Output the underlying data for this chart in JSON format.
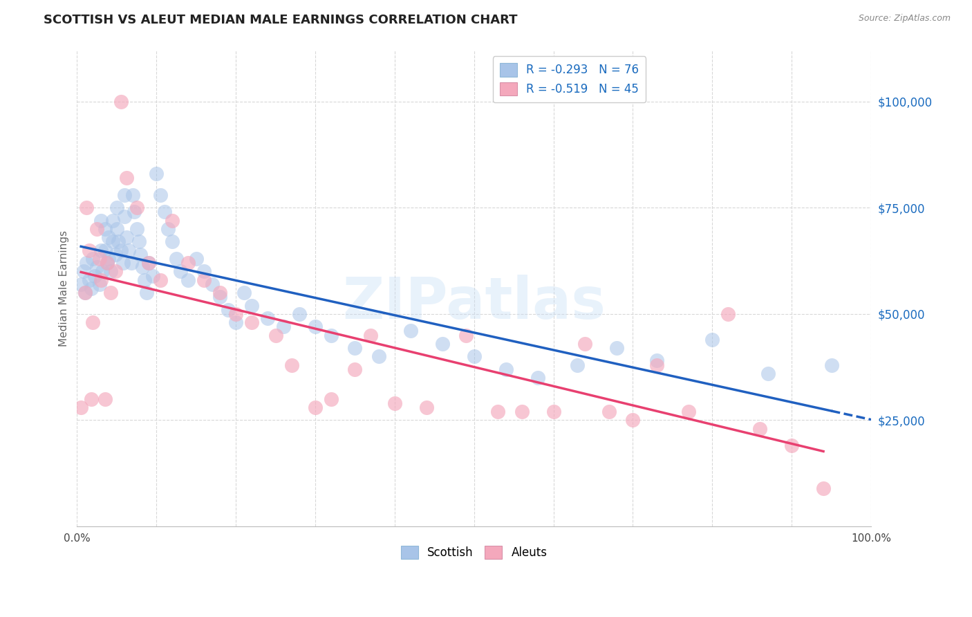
{
  "title": "SCOTTISH VS ALEUT MEDIAN MALE EARNINGS CORRELATION CHART",
  "source": "Source: ZipAtlas.com",
  "ylabel": "Median Male Earnings",
  "xlim": [
    0,
    1.0
  ],
  "ylim": [
    0,
    112000
  ],
  "yticks": [
    25000,
    50000,
    75000,
    100000
  ],
  "ytick_labels": [
    "$25,000",
    "$50,000",
    "$75,000",
    "$100,000"
  ],
  "xtick_positions": [
    0.0,
    0.1,
    0.2,
    0.3,
    0.4,
    0.5,
    0.6,
    0.7,
    0.8,
    0.9,
    1.0
  ],
  "xtick_labels_show": [
    "0.0%",
    "",
    "",
    "",
    "",
    "",
    "",
    "",
    "",
    "",
    "100.0%"
  ],
  "scottish_fill": "#a8c4e8",
  "aleuts_fill": "#f4a8bc",
  "trendline_blue": "#2060c0",
  "trendline_pink": "#e84070",
  "watermark": "ZIPatlas",
  "watermark_color": "#c5ddf5",
  "background_color": "#ffffff",
  "title_fontsize": 13,
  "source_fontsize": 9,
  "legend_color": "#1a6bbf",
  "scottish_x": [
    0.005,
    0.008,
    0.01,
    0.012,
    0.015,
    0.018,
    0.02,
    0.022,
    0.025,
    0.028,
    0.03,
    0.03,
    0.032,
    0.035,
    0.035,
    0.038,
    0.04,
    0.04,
    0.042,
    0.045,
    0.045,
    0.048,
    0.05,
    0.05,
    0.052,
    0.055,
    0.058,
    0.06,
    0.06,
    0.062,
    0.065,
    0.068,
    0.07,
    0.072,
    0.075,
    0.078,
    0.08,
    0.082,
    0.085,
    0.088,
    0.09,
    0.095,
    0.1,
    0.105,
    0.11,
    0.115,
    0.12,
    0.125,
    0.13,
    0.14,
    0.15,
    0.16,
    0.17,
    0.18,
    0.19,
    0.2,
    0.21,
    0.22,
    0.24,
    0.26,
    0.28,
    0.3,
    0.32,
    0.35,
    0.38,
    0.42,
    0.46,
    0.5,
    0.54,
    0.58,
    0.63,
    0.68,
    0.73,
    0.8,
    0.87,
    0.95
  ],
  "scottish_y": [
    57000,
    60000,
    55000,
    62000,
    58000,
    56000,
    63000,
    59000,
    61000,
    57000,
    72000,
    65000,
    60000,
    70000,
    65000,
    62000,
    68000,
    63000,
    60000,
    72000,
    67000,
    64000,
    75000,
    70000,
    67000,
    65000,
    62000,
    78000,
    73000,
    68000,
    65000,
    62000,
    78000,
    74000,
    70000,
    67000,
    64000,
    61000,
    58000,
    55000,
    62000,
    59000,
    83000,
    78000,
    74000,
    70000,
    67000,
    63000,
    60000,
    58000,
    63000,
    60000,
    57000,
    54000,
    51000,
    48000,
    55000,
    52000,
    49000,
    47000,
    50000,
    47000,
    45000,
    42000,
    40000,
    46000,
    43000,
    40000,
    37000,
    35000,
    38000,
    42000,
    39000,
    44000,
    36000,
    38000
  ],
  "aleuts_x": [
    0.005,
    0.01,
    0.012,
    0.015,
    0.018,
    0.02,
    0.025,
    0.028,
    0.03,
    0.035,
    0.038,
    0.042,
    0.048,
    0.055,
    0.062,
    0.075,
    0.09,
    0.105,
    0.12,
    0.14,
    0.16,
    0.18,
    0.2,
    0.22,
    0.25,
    0.27,
    0.3,
    0.32,
    0.35,
    0.37,
    0.4,
    0.44,
    0.49,
    0.53,
    0.56,
    0.6,
    0.64,
    0.67,
    0.7,
    0.73,
    0.77,
    0.82,
    0.86,
    0.9,
    0.94
  ],
  "aleuts_y": [
    28000,
    55000,
    75000,
    65000,
    30000,
    48000,
    70000,
    63000,
    58000,
    30000,
    62000,
    55000,
    60000,
    100000,
    82000,
    75000,
    62000,
    58000,
    72000,
    62000,
    58000,
    55000,
    50000,
    48000,
    45000,
    38000,
    28000,
    30000,
    37000,
    45000,
    29000,
    28000,
    45000,
    27000,
    27000,
    27000,
    43000,
    27000,
    25000,
    38000,
    27000,
    50000,
    23000,
    19000,
    9000
  ]
}
